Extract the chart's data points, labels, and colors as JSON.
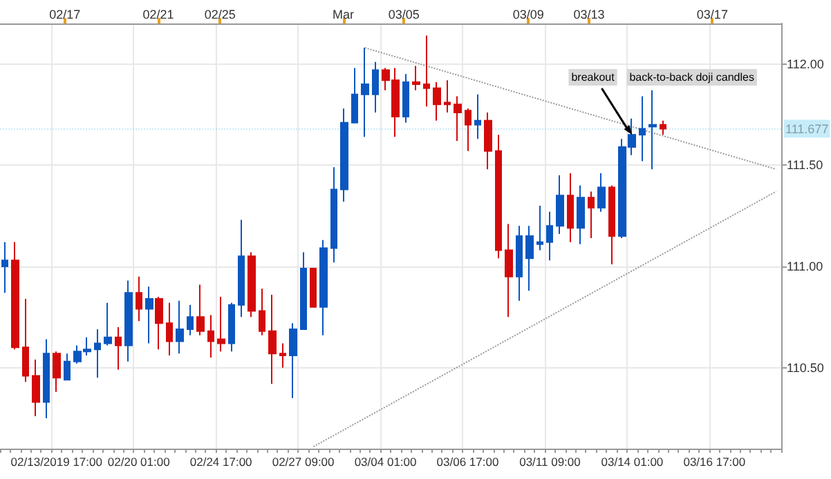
{
  "chart_data": {
    "type": "candlestick",
    "categories": [
      null,
      null,
      null,
      null,
      null,
      "02/13/2019 17:00",
      null,
      null,
      null,
      null,
      null,
      null,
      null,
      "02/20 01:00",
      null,
      null,
      null,
      null,
      null,
      null,
      null,
      "02/24 17:00",
      null,
      null,
      null,
      null,
      null,
      null,
      null,
      "02/27 09:00",
      null,
      null,
      null,
      null,
      null,
      null,
      null,
      "03/04 01:00",
      null,
      null,
      null,
      null,
      null,
      null,
      null,
      "03/06 17:00",
      null,
      null,
      null,
      null,
      null,
      null,
      null,
      "03/11 09:00",
      null,
      null,
      null,
      null,
      null,
      null,
      null,
      "03/14 01:00",
      null,
      null,
      null,
      null,
      null,
      null,
      null,
      "03/16 17:00",
      null,
      null,
      null,
      null,
      null,
      null
    ],
    "ohlc": [
      [
        111.0,
        111.12,
        110.87,
        111.03
      ],
      [
        111.03,
        111.12,
        110.59,
        110.6
      ],
      [
        110.6,
        110.84,
        110.43,
        110.46
      ],
      [
        110.46,
        110.54,
        110.26,
        110.33
      ],
      [
        110.33,
        110.64,
        110.25,
        110.57
      ],
      [
        110.57,
        110.58,
        110.38,
        110.45
      ],
      [
        110.44,
        110.57,
        110.44,
        110.53
      ],
      [
        110.53,
        110.61,
        110.52,
        110.58
      ],
      [
        110.58,
        110.65,
        110.56,
        110.59
      ],
      [
        110.59,
        110.69,
        110.45,
        110.62
      ],
      [
        110.62,
        110.82,
        110.61,
        110.65
      ],
      [
        110.65,
        110.7,
        110.49,
        110.61
      ],
      [
        110.61,
        110.93,
        110.53,
        110.87
      ],
      [
        110.87,
        110.95,
        110.73,
        110.79
      ],
      [
        110.79,
        110.9,
        110.62,
        110.84
      ],
      [
        110.84,
        110.85,
        110.59,
        110.72
      ],
      [
        110.72,
        110.82,
        110.56,
        110.63
      ],
      [
        110.63,
        110.83,
        110.57,
        110.69
      ],
      [
        110.69,
        110.81,
        110.66,
        110.75
      ],
      [
        110.75,
        110.91,
        110.66,
        110.68
      ],
      [
        110.68,
        110.76,
        110.55,
        110.63
      ],
      [
        110.64,
        110.85,
        110.58,
        110.62
      ],
      [
        110.62,
        110.82,
        110.58,
        110.81
      ],
      [
        110.81,
        111.23,
        110.75,
        111.05
      ],
      [
        111.05,
        111.07,
        110.75,
        110.78
      ],
      [
        110.78,
        110.89,
        110.66,
        110.68
      ],
      [
        110.68,
        110.86,
        110.42,
        110.57
      ],
      [
        110.57,
        110.62,
        110.5,
        110.56
      ],
      [
        110.56,
        110.72,
        110.35,
        110.69
      ],
      [
        110.69,
        111.07,
        110.69,
        110.99
      ],
      [
        110.99,
        110.99,
        110.8,
        110.8
      ],
      [
        110.8,
        111.13,
        110.66,
        111.09
      ],
      [
        111.09,
        111.49,
        111.02,
        111.38
      ],
      [
        111.38,
        111.78,
        111.32,
        111.71
      ],
      [
        111.71,
        111.98,
        111.71,
        111.85
      ],
      [
        111.85,
        112.08,
        111.64,
        111.9
      ],
      [
        111.85,
        112.01,
        111.76,
        111.97
      ],
      [
        111.97,
        111.98,
        111.87,
        111.92
      ],
      [
        111.92,
        111.98,
        111.64,
        111.74
      ],
      [
        111.74,
        111.95,
        111.71,
        111.91
      ],
      [
        111.91,
        111.99,
        111.87,
        111.9
      ],
      [
        111.9,
        112.14,
        111.79,
        111.88
      ],
      [
        111.88,
        111.91,
        111.72,
        111.8
      ],
      [
        111.81,
        111.92,
        111.76,
        111.8
      ],
      [
        111.8,
        111.84,
        111.62,
        111.76
      ],
      [
        111.77,
        111.78,
        111.57,
        111.7
      ],
      [
        111.7,
        111.85,
        111.63,
        111.72
      ],
      [
        111.72,
        111.76,
        111.48,
        111.57
      ],
      [
        111.57,
        111.65,
        111.04,
        111.08
      ],
      [
        111.08,
        111.21,
        110.75,
        110.95
      ],
      [
        110.95,
        111.2,
        110.83,
        111.15
      ],
      [
        111.04,
        111.2,
        110.88,
        111.15
      ],
      [
        111.11,
        111.3,
        111.08,
        111.12
      ],
      [
        111.12,
        111.27,
        111.03,
        111.2
      ],
      [
        111.2,
        111.45,
        111.16,
        111.35
      ],
      [
        111.35,
        111.46,
        111.12,
        111.19
      ],
      [
        111.19,
        111.4,
        111.11,
        111.34
      ],
      [
        111.34,
        111.37,
        111.14,
        111.29
      ],
      [
        111.29,
        111.46,
        111.27,
        111.39
      ],
      [
        111.39,
        111.4,
        111.01,
        111.15
      ],
      [
        111.15,
        111.63,
        111.14,
        111.59
      ],
      [
        111.59,
        111.73,
        111.55,
        111.65
      ],
      [
        111.65,
        111.84,
        111.52,
        111.68
      ],
      [
        111.69,
        111.87,
        111.48,
        111.7
      ],
      [
        111.7,
        111.72,
        111.65,
        111.68
      ],
      null,
      null,
      null,
      null,
      null,
      null,
      null,
      null,
      null,
      null,
      null
    ],
    "colors": [
      "#0b57c0",
      "#d40a0a",
      "#d40a0a",
      "#d40a0a",
      "#0b57c0",
      "#d40a0a",
      "#0b57c0",
      "#0b57c0",
      "#0b57c0",
      "#0b57c0",
      "#0b57c0",
      "#d40a0a",
      "#0b57c0",
      "#d40a0a",
      "#0b57c0",
      "#d40a0a",
      "#d40a0a",
      "#0b57c0",
      "#0b57c0",
      "#d40a0a",
      "#d40a0a",
      "#d40a0a",
      "#0b57c0",
      "#0b57c0",
      "#d40a0a",
      "#d40a0a",
      "#d40a0a",
      "#d40a0a",
      "#0b57c0",
      "#0b57c0",
      "#d40a0a",
      "#0b57c0",
      "#0b57c0",
      "#0b57c0",
      "#0b57c0",
      "#0b57c0",
      "#0b57c0",
      "#d40a0a",
      "#d40a0a",
      "#0b57c0",
      "#d40a0a",
      "#d40a0a",
      "#d40a0a",
      "#d40a0a",
      "#d40a0a",
      "#d40a0a",
      "#0b57c0",
      "#d40a0a",
      "#d40a0a",
      "#d40a0a",
      "#0b57c0",
      "#0b57c0",
      "#0b57c0",
      "#0b57c0",
      "#0b57c0",
      "#d40a0a",
      "#0b57c0",
      "#d40a0a",
      "#0b57c0",
      "#d40a0a",
      "#0b57c0",
      "#0b57c0",
      "#0b57c0",
      "#0b57c0",
      "#d40a0a",
      null,
      null,
      null,
      null,
      null,
      null,
      null,
      null,
      null,
      null,
      null
    ],
    "series": [
      {
        "type": "line",
        "color": "#999999",
        "line_style": "dotted",
        "values": [
          null,
          null,
          null,
          null,
          null,
          null,
          null,
          null,
          null,
          null,
          null,
          null,
          null,
          null,
          null,
          null,
          null,
          null,
          null,
          null,
          null,
          null,
          null,
          null,
          null,
          null,
          null,
          null,
          null,
          null,
          null,
          null,
          null,
          null,
          null,
          112.08,
          null,
          null,
          null,
          null,
          null,
          null,
          null,
          null,
          null,
          null,
          null,
          null,
          null,
          null,
          null,
          null,
          null,
          null,
          null,
          null,
          null,
          null,
          null,
          null,
          null,
          null,
          null,
          null,
          null,
          null,
          null,
          null,
          null,
          null,
          null,
          null,
          null,
          null,
          null,
          111.48
        ]
      },
      {
        "type": "line",
        "color": "#999999",
        "line_style": "dotted",
        "values": [
          null,
          null,
          null,
          null,
          null,
          null,
          null,
          null,
          null,
          null,
          null,
          null,
          null,
          null,
          null,
          null,
          null,
          null,
          null,
          null,
          null,
          null,
          null,
          null,
          null,
          null,
          null,
          null,
          null,
          null,
          110.11,
          null,
          null,
          null,
          null,
          null,
          null,
          null,
          null,
          null,
          null,
          null,
          null,
          null,
          null,
          null,
          null,
          null,
          null,
          null,
          null,
          null,
          null,
          null,
          null,
          null,
          null,
          null,
          null,
          null,
          null,
          null,
          null,
          null,
          null,
          null,
          null,
          null,
          null,
          null,
          null,
          null,
          null,
          null,
          null,
          111.37
        ]
      }
    ],
    "ylim": [
      110.1,
      112.2
    ],
    "yticks": [
      {
        "value": 110.5,
        "label": "110.50"
      },
      {
        "value": 111,
        "label": "111.00"
      },
      {
        "value": 111.5,
        "label": "111.50"
      },
      {
        "value": 112,
        "label": "112.00"
      }
    ],
    "ref_lines": [
      {
        "axis": "y",
        "value": 111.677,
        "label": "111.677",
        "color": "#5bc8f0"
      }
    ],
    "annotations": [
      "02/17",
      "02/21",
      "02/25",
      "Mar",
      "03/05",
      "03/09",
      "03/13",
      "03/17",
      {
        "text": "breakout",
        "x": "03/14 01:00",
        "y": 111.65
      },
      "back-to-back doji candles"
    ],
    "grid": true,
    "marker": "none"
  }
}
